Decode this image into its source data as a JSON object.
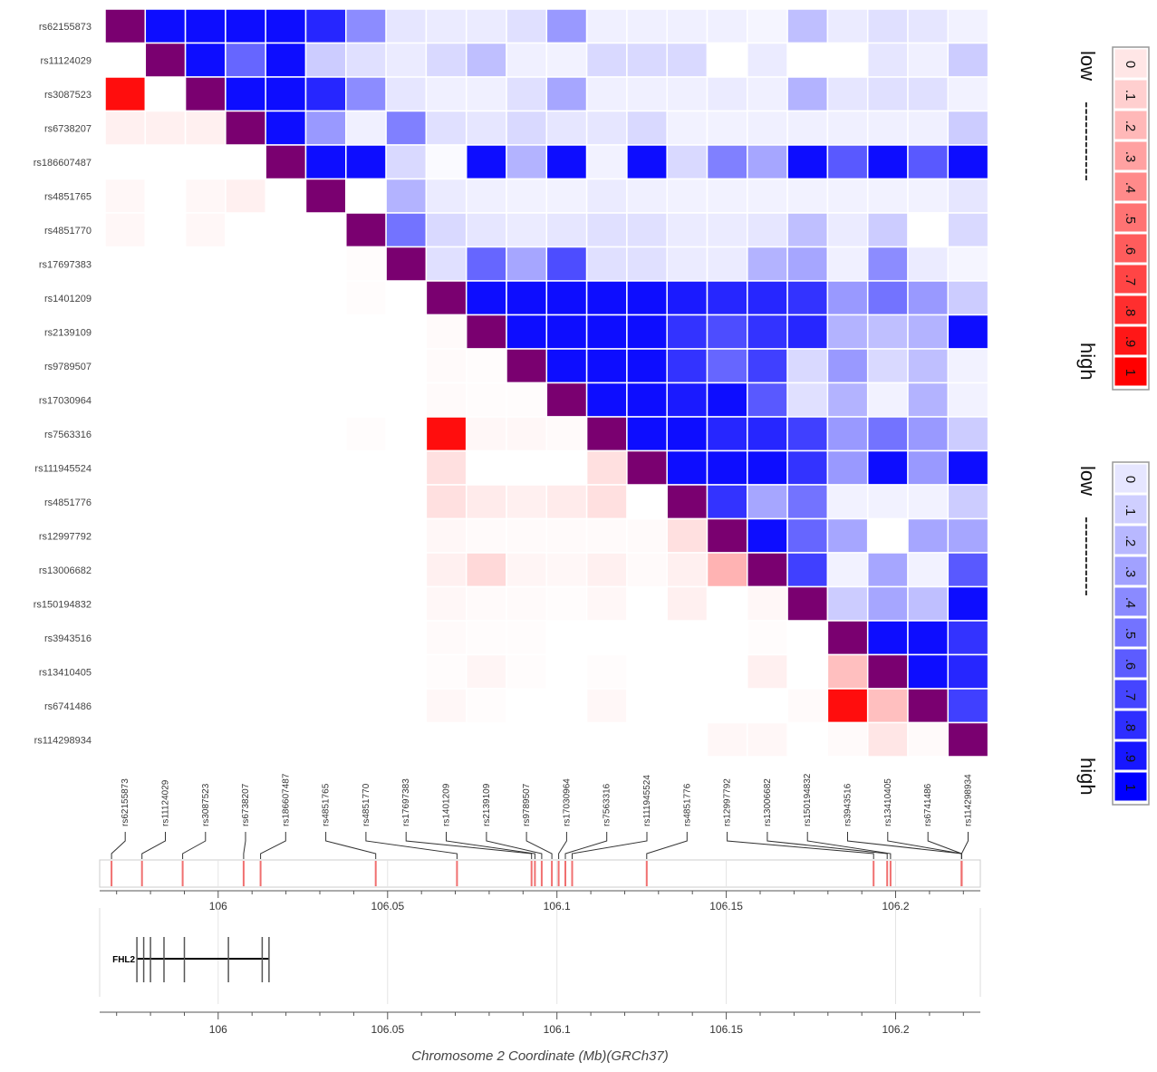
{
  "chart_data": {
    "type": "heatmap",
    "title": "",
    "snps": [
      "rs62155873",
      "rs11124029",
      "rs3087523",
      "rs6738207",
      "rs186607487",
      "rs4851765",
      "rs4851770",
      "rs17697383",
      "rs1401209",
      "rs2139109",
      "rs9789507",
      "rs17030964",
      "rs7563316",
      "rs111945524",
      "rs4851776",
      "rs12997792",
      "rs13006682",
      "rs150194832",
      "rs3943516",
      "rs13410405",
      "rs6741486",
      "rs114298934"
    ],
    "positions_mb": [
      105.9685,
      105.9775,
      105.9895,
      106.0075,
      106.0125,
      106.0465,
      106.0705,
      106.0925,
      106.0935,
      106.0955,
      106.0985,
      106.1005,
      106.1025,
      106.1045,
      106.1265,
      106.1935,
      106.1975,
      106.1985,
      106.2195,
      106.2195,
      106.2195,
      106.2195
    ],
    "upper_matrix_label": "blue (upper triangle)",
    "lower_matrix_label": "red (lower triangle)",
    "upper": [
      [
        null,
        0.95,
        0.95,
        0.95,
        0.95,
        0.85,
        0.45,
        0.1,
        0.08,
        0.08,
        0.12,
        0.4,
        0.06,
        0.06,
        0.06,
        0.06,
        0.04,
        0.25,
        0.08,
        0.12,
        0.1,
        0.05
      ],
      [
        null,
        null,
        0.95,
        0.6,
        0.95,
        0.2,
        0.12,
        0.08,
        0.15,
        0.25,
        0.06,
        0.05,
        0.15,
        0.15,
        0.15,
        0.0,
        0.08,
        0.0,
        0.0,
        0.1,
        0.06,
        0.2
      ],
      [
        null,
        null,
        null,
        0.95,
        0.95,
        0.85,
        0.45,
        0.1,
        0.06,
        0.06,
        0.12,
        0.35,
        0.06,
        0.06,
        0.06,
        0.08,
        0.06,
        0.3,
        0.1,
        0.12,
        0.12,
        0.05
      ],
      [
        null,
        null,
        null,
        null,
        0.95,
        0.4,
        0.06,
        0.5,
        0.12,
        0.1,
        0.15,
        0.1,
        0.1,
        0.15,
        0.05,
        0.05,
        0.06,
        0.06,
        0.06,
        0.06,
        0.06,
        0.2
      ],
      [
        null,
        null,
        null,
        null,
        null,
        0.95,
        0.95,
        0.15,
        0.02,
        0.95,
        0.3,
        0.95,
        0.05,
        0.95,
        0.15,
        0.5,
        0.35,
        0.95,
        0.65,
        0.95,
        0.65,
        0.95
      ],
      [
        null,
        null,
        null,
        null,
        null,
        null,
        0.0,
        0.3,
        0.08,
        0.06,
        0.05,
        0.05,
        0.08,
        0.06,
        0.05,
        0.05,
        0.05,
        0.05,
        0.05,
        0.05,
        0.05,
        0.1
      ],
      [
        null,
        null,
        null,
        null,
        null,
        null,
        null,
        0.55,
        0.15,
        0.1,
        0.08,
        0.1,
        0.12,
        0.12,
        0.08,
        0.08,
        0.1,
        0.25,
        0.08,
        0.2,
        0.0,
        0.15
      ],
      [
        null,
        null,
        null,
        null,
        null,
        null,
        null,
        null,
        0.12,
        0.6,
        0.35,
        0.7,
        0.12,
        0.12,
        0.08,
        0.08,
        0.3,
        0.35,
        0.06,
        0.45,
        0.08,
        0.04
      ],
      [
        null,
        null,
        null,
        null,
        null,
        null,
        null,
        null,
        null,
        0.95,
        0.95,
        0.95,
        0.95,
        0.95,
        0.9,
        0.85,
        0.85,
        0.8,
        0.4,
        0.55,
        0.4,
        0.2
      ],
      [
        null,
        null,
        null,
        null,
        null,
        null,
        null,
        null,
        null,
        null,
        0.95,
        0.95,
        0.95,
        0.95,
        0.8,
        0.7,
        0.8,
        0.85,
        0.3,
        0.25,
        0.3,
        0.95
      ],
      [
        null,
        null,
        null,
        null,
        null,
        null,
        null,
        null,
        null,
        null,
        null,
        0.95,
        0.95,
        0.95,
        0.8,
        0.6,
        0.75,
        0.15,
        0.4,
        0.15,
        0.25,
        0.05
      ],
      [
        null,
        null,
        null,
        null,
        null,
        null,
        null,
        null,
        null,
        null,
        null,
        null,
        0.95,
        0.95,
        0.9,
        0.95,
        0.65,
        0.12,
        0.3,
        0.05,
        0.3,
        0.05
      ],
      [
        null,
        null,
        null,
        null,
        null,
        null,
        null,
        null,
        null,
        null,
        null,
        null,
        null,
        0.95,
        0.95,
        0.85,
        0.85,
        0.75,
        0.4,
        0.55,
        0.4,
        0.2
      ],
      [
        null,
        null,
        null,
        null,
        null,
        null,
        null,
        null,
        null,
        null,
        null,
        null,
        null,
        null,
        0.95,
        0.95,
        0.95,
        0.8,
        0.4,
        0.95,
        0.4,
        0.95
      ],
      [
        null,
        null,
        null,
        null,
        null,
        null,
        null,
        null,
        null,
        null,
        null,
        null,
        null,
        null,
        null,
        0.8,
        0.35,
        0.55,
        0.05,
        0.05,
        0.05,
        0.2
      ],
      [
        null,
        null,
        null,
        null,
        null,
        null,
        null,
        null,
        null,
        null,
        null,
        null,
        null,
        null,
        null,
        null,
        0.95,
        0.6,
        0.35,
        0.0,
        0.35,
        0.35
      ],
      [
        null,
        null,
        null,
        null,
        null,
        null,
        null,
        null,
        null,
        null,
        null,
        null,
        null,
        null,
        null,
        null,
        null,
        0.75,
        0.05,
        0.35,
        0.05,
        0.65
      ],
      [
        null,
        null,
        null,
        null,
        null,
        null,
        null,
        null,
        null,
        null,
        null,
        null,
        null,
        null,
        null,
        null,
        null,
        null,
        0.2,
        0.35,
        0.25,
        0.95
      ],
      [
        null,
        null,
        null,
        null,
        null,
        null,
        null,
        null,
        null,
        null,
        null,
        null,
        null,
        null,
        null,
        null,
        null,
        null,
        null,
        0.95,
        0.95,
        0.8
      ],
      [
        null,
        null,
        null,
        null,
        null,
        null,
        null,
        null,
        null,
        null,
        null,
        null,
        null,
        null,
        null,
        null,
        null,
        null,
        null,
        null,
        0.95,
        0.85
      ],
      [
        null,
        null,
        null,
        null,
        null,
        null,
        null,
        null,
        null,
        null,
        null,
        null,
        null,
        null,
        null,
        null,
        null,
        null,
        null,
        null,
        null,
        0.75
      ],
      [
        null,
        null,
        null,
        null,
        null,
        null,
        null,
        null,
        null,
        null,
        null,
        null,
        null,
        null,
        null,
        null,
        null,
        null,
        null,
        null,
        null,
        null
      ]
    ],
    "lower": [
      [
        null,
        null,
        null,
        null,
        null,
        null,
        null,
        null,
        null,
        null,
        null,
        null,
        null,
        null,
        null,
        null,
        null,
        null,
        null,
        null,
        null,
        null
      ],
      [
        0.0,
        null,
        null,
        null,
        null,
        null,
        null,
        null,
        null,
        null,
        null,
        null,
        null,
        null,
        null,
        null,
        null,
        null,
        null,
        null,
        null,
        null
      ],
      [
        0.95,
        0.0,
        null,
        null,
        null,
        null,
        null,
        null,
        null,
        null,
        null,
        null,
        null,
        null,
        null,
        null,
        null,
        null,
        null,
        null,
        null,
        null
      ],
      [
        0.06,
        0.06,
        0.06,
        null,
        null,
        null,
        null,
        null,
        null,
        null,
        null,
        null,
        null,
        null,
        null,
        null,
        null,
        null,
        null,
        null,
        null,
        null
      ],
      [
        0.0,
        0.0,
        0.0,
        0.0,
        null,
        null,
        null,
        null,
        null,
        null,
        null,
        null,
        null,
        null,
        null,
        null,
        null,
        null,
        null,
        null,
        null,
        null
      ],
      [
        0.03,
        0.0,
        0.03,
        0.06,
        0.0,
        null,
        null,
        null,
        null,
        null,
        null,
        null,
        null,
        null,
        null,
        null,
        null,
        null,
        null,
        null,
        null,
        null
      ],
      [
        0.03,
        0.0,
        0.03,
        0.0,
        0.0,
        0.0,
        null,
        null,
        null,
        null,
        null,
        null,
        null,
        null,
        null,
        null,
        null,
        null,
        null,
        null,
        null,
        null
      ],
      [
        0.0,
        0.0,
        0.0,
        0.0,
        0.0,
        0.0,
        0.01,
        null,
        null,
        null,
        null,
        null,
        null,
        null,
        null,
        null,
        null,
        null,
        null,
        null,
        null,
        null
      ],
      [
        0.0,
        0.0,
        0.0,
        0.0,
        0.0,
        0.0,
        0.01,
        0.0,
        null,
        null,
        null,
        null,
        null,
        null,
        null,
        null,
        null,
        null,
        null,
        null,
        null,
        null
      ],
      [
        0.0,
        0.0,
        0.0,
        0.0,
        0.0,
        0.0,
        0.0,
        0.0,
        0.02,
        null,
        null,
        null,
        null,
        null,
        null,
        null,
        null,
        null,
        null,
        null,
        null,
        null
      ],
      [
        0.0,
        0.0,
        0.0,
        0.0,
        0.0,
        0.0,
        0.0,
        0.0,
        0.02,
        0.01,
        null,
        null,
        null,
        null,
        null,
        null,
        null,
        null,
        null,
        null,
        null,
        null
      ],
      [
        0.0,
        0.0,
        0.0,
        0.0,
        0.0,
        0.0,
        0.0,
        0.0,
        0.02,
        0.01,
        0.01,
        null,
        null,
        null,
        null,
        null,
        null,
        null,
        null,
        null,
        null,
        null
      ],
      [
        0.0,
        0.0,
        0.0,
        0.0,
        0.0,
        0.0,
        0.01,
        0.0,
        0.95,
        0.03,
        0.03,
        0.02,
        null,
        null,
        null,
        null,
        null,
        null,
        null,
        null,
        null,
        null
      ],
      [
        0.0,
        0.0,
        0.0,
        0.0,
        0.0,
        0.0,
        0.0,
        0.0,
        0.12,
        0.0,
        0.0,
        0.0,
        0.12,
        null,
        null,
        null,
        null,
        null,
        null,
        null,
        null,
        null
      ],
      [
        0.0,
        0.0,
        0.0,
        0.0,
        0.0,
        0.0,
        0.0,
        0.0,
        0.12,
        0.08,
        0.06,
        0.08,
        0.12,
        0.0,
        null,
        null,
        null,
        null,
        null,
        null,
        null,
        null
      ],
      [
        0.0,
        0.0,
        0.0,
        0.0,
        0.0,
        0.0,
        0.0,
        0.0,
        0.03,
        0.02,
        0.02,
        0.02,
        0.02,
        0.02,
        0.12,
        null,
        null,
        null,
        null,
        null,
        null,
        null
      ],
      [
        0.0,
        0.0,
        0.0,
        0.0,
        0.0,
        0.0,
        0.0,
        0.0,
        0.06,
        0.15,
        0.04,
        0.03,
        0.06,
        0.02,
        0.06,
        0.3,
        null,
        null,
        null,
        null,
        null,
        null
      ],
      [
        0.0,
        0.0,
        0.0,
        0.0,
        0.0,
        0.0,
        0.0,
        0.0,
        0.03,
        0.02,
        0.02,
        0.01,
        0.03,
        0.0,
        0.06,
        0.0,
        0.03,
        null,
        null,
        null,
        null,
        null
      ],
      [
        0.0,
        0.0,
        0.0,
        0.0,
        0.0,
        0.0,
        0.0,
        0.0,
        0.02,
        0.01,
        0.01,
        0.0,
        0.0,
        0.0,
        0.0,
        0.0,
        0.01,
        0.0,
        null,
        null,
        null,
        null
      ],
      [
        0.0,
        0.0,
        0.0,
        0.0,
        0.0,
        0.0,
        0.0,
        0.0,
        0.01,
        0.04,
        0.01,
        0.0,
        0.01,
        0.0,
        0.0,
        0.0,
        0.06,
        0.0,
        0.25,
        null,
        null,
        null
      ],
      [
        0.0,
        0.0,
        0.0,
        0.0,
        0.0,
        0.0,
        0.0,
        0.0,
        0.03,
        0.01,
        0.0,
        0.0,
        0.03,
        0.0,
        0.0,
        0.0,
        0.0,
        0.02,
        0.95,
        0.25,
        null,
        null
      ],
      [
        0.0,
        0.0,
        0.0,
        0.0,
        0.0,
        0.0,
        0.0,
        0.0,
        0.0,
        0.0,
        0.0,
        0.0,
        0.0,
        0.0,
        0.0,
        0.03,
        0.03,
        0.0,
        0.02,
        0.1,
        0.02,
        null
      ]
    ],
    "diagonal_color": "#7a0070",
    "axis": {
      "ticks": [
        "106",
        "106.05",
        "106.1",
        "106.15",
        "106.2"
      ],
      "tick_values": [
        106.0,
        106.05,
        106.1,
        106.15,
        106.2
      ],
      "range": [
        105.965,
        106.225
      ],
      "title": "Chromosome 2 Coordinate (Mb)(GRCh37)"
    },
    "gene": {
      "name": "FHL2",
      "start_mb": 105.976,
      "end_mb": 106.015,
      "exons_mb": [
        105.976,
        105.978,
        105.98,
        105.984,
        105.99,
        106.003,
        106.013,
        106.015
      ]
    },
    "legend_red": {
      "low": "low",
      "high": "high",
      "dashes": "------------",
      "values": [
        "0",
        ".1",
        ".2",
        ".3",
        ".4",
        ".5",
        ".6",
        ".7",
        ".8",
        ".9",
        "1"
      ]
    },
    "legend_blue": {
      "low": "low",
      "high": "high",
      "dashes": "------------",
      "values": [
        "0",
        ".1",
        ".2",
        ".3",
        ".4",
        ".5",
        ".6",
        ".7",
        ".8",
        ".9",
        "1"
      ]
    }
  },
  "colors": {
    "red": "#ff0000",
    "blue": "#0000ff",
    "diag": "#7a0070",
    "grid": "#ffffff",
    "legend_text_blue": "#00a0c8"
  }
}
